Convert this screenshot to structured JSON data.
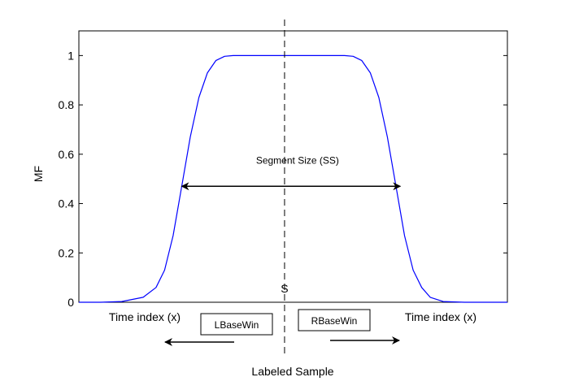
{
  "chart_data": {
    "type": "line",
    "title": "",
    "xlabel": "",
    "ylabel": "MF",
    "ylim": [
      0,
      1.1
    ],
    "yticks": [
      0,
      0.2,
      0.4,
      0.6,
      0.8,
      1
    ],
    "ytick_labels": [
      "0",
      "0.2",
      "0.4",
      "0.6",
      "0.8",
      "1"
    ],
    "xlim": [
      0,
      100
    ],
    "grid": false,
    "series": [
      {
        "color": "#0000ff",
        "x": [
          0,
          5,
          10,
          15,
          18,
          20,
          22,
          24,
          26,
          28,
          30,
          32,
          34,
          36,
          38,
          40,
          45,
          50,
          55,
          60,
          62,
          64,
          66,
          68,
          70,
          72,
          74,
          76,
          78,
          80,
          82,
          85,
          90,
          95,
          100
        ],
        "y": [
          0,
          0.0,
          0.003,
          0.02,
          0.06,
          0.13,
          0.27,
          0.47,
          0.67,
          0.83,
          0.93,
          0.98,
          0.997,
          1,
          1,
          1,
          1,
          1,
          1,
          1,
          1,
          0.997,
          0.98,
          0.93,
          0.83,
          0.67,
          0.47,
          0.27,
          0.13,
          0.06,
          0.02,
          0.003,
          0.0,
          0,
          0
        ]
      }
    ],
    "sample_x": 48,
    "segment_arrow": {
      "x_start": 24,
      "x_end": 75,
      "y": 0.47
    },
    "annotations": {
      "segment_size": "Segment Size (SS)",
      "sample_marker": "S",
      "time_index_left": "Time index  (x)",
      "time_index_right": "Time index  (x)",
      "left_box": "LBaseWin",
      "right_box": "RBaseWin",
      "labeled_sample": "Labeled Sample"
    },
    "colors": {
      "line": "#0000ff",
      "axes": "#000000"
    }
  }
}
